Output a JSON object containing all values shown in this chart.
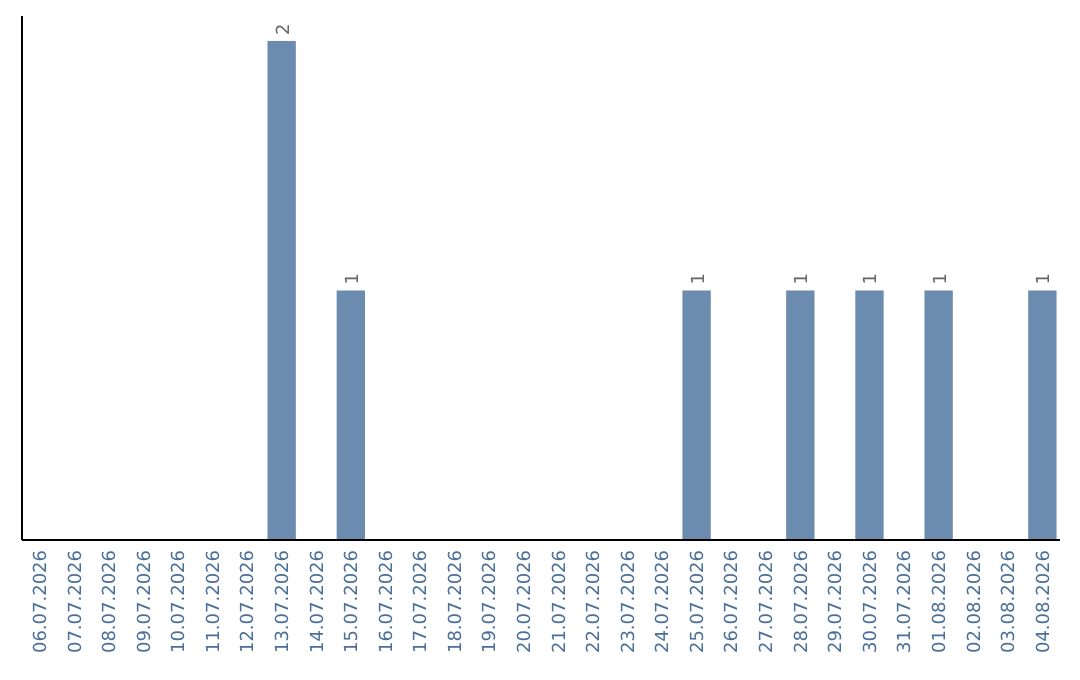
{
  "chart_data": {
    "type": "bar",
    "categories": [
      "06.07.2026",
      "07.07.2026",
      "08.07.2026",
      "09.07.2026",
      "10.07.2026",
      "11.07.2026",
      "12.07.2026",
      "13.07.2026",
      "14.07.2026",
      "15.07.2026",
      "16.07.2026",
      "17.07.2026",
      "18.07.2026",
      "19.07.2026",
      "20.07.2026",
      "21.07.2026",
      "22.07.2026",
      "23.07.2026",
      "24.07.2026",
      "25.07.2026",
      "26.07.2026",
      "27.07.2026",
      "28.07.2026",
      "29.07.2026",
      "30.07.2026",
      "31.07.2026",
      "01.08.2026",
      "02.08.2026",
      "03.08.2026",
      "04.08.2026"
    ],
    "values": [
      0,
      0,
      0,
      0,
      0,
      0,
      0,
      2,
      0,
      1,
      0,
      0,
      0,
      0,
      0,
      0,
      0,
      0,
      0,
      1,
      0,
      0,
      1,
      0,
      1,
      0,
      1,
      0,
      0,
      1
    ],
    "value_labels": [
      null,
      null,
      null,
      null,
      null,
      null,
      null,
      "2",
      null,
      "1",
      null,
      null,
      null,
      null,
      null,
      null,
      null,
      null,
      null,
      "1",
      null,
      null,
      "1",
      null,
      "1",
      null,
      "1",
      null,
      null,
      "1"
    ],
    "color": "#6b8cae",
    "grid": false
  }
}
